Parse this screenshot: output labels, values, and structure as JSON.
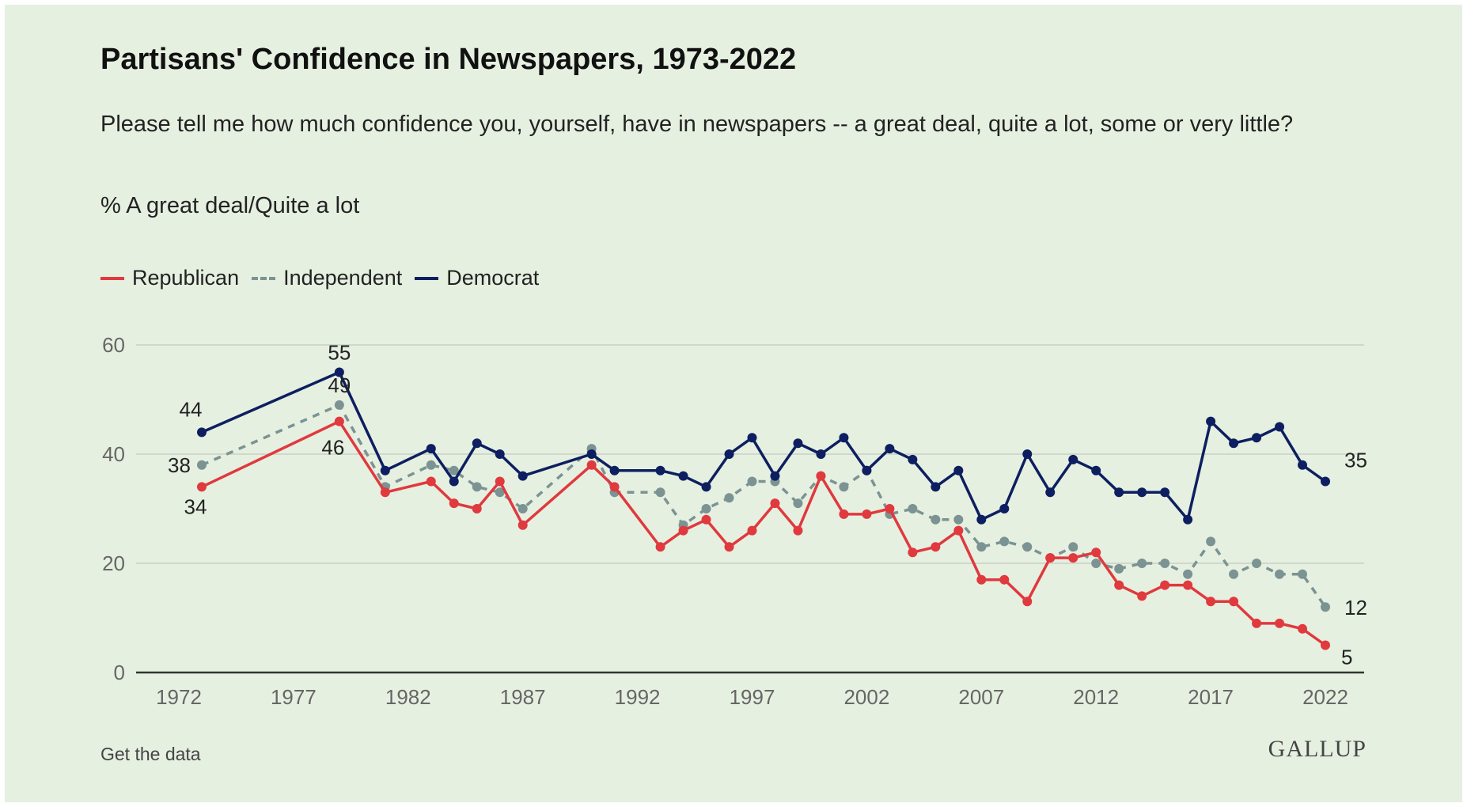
{
  "title": "Partisans' Confidence in Newspapers, 1973-2022",
  "subtitle": "Please tell me how much confidence you, yourself, have in newspapers -- a great deal, quite a lot, some or very little?",
  "measure": "% A great deal/Quite a lot",
  "footer": {
    "get_data": "Get the data",
    "logo": "GALLUP"
  },
  "chart_data": {
    "type": "line",
    "title": "Partisans' Confidence in Newspapers, 1973-2022",
    "xlabel": "",
    "ylabel": "% A great deal/Quite a lot",
    "xlim": [
      1972,
      2022
    ],
    "ylim": [
      0,
      60
    ],
    "x_ticks": [
      "1972",
      "1977",
      "1982",
      "1987",
      "1992",
      "1997",
      "2002",
      "2007",
      "2012",
      "2017",
      "2022"
    ],
    "y_ticks": [
      "0",
      "20",
      "40",
      "60"
    ],
    "legend_position": "top-left",
    "x": [
      1973,
      1979,
      1981,
      1983,
      1984,
      1985,
      1986,
      1987,
      1990,
      1991,
      1993,
      1994,
      1995,
      1996,
      1997,
      1998,
      1999,
      2000,
      2001,
      2002,
      2003,
      2004,
      2005,
      2006,
      2007,
      2008,
      2009,
      2010,
      2011,
      2012,
      2013,
      2014,
      2015,
      2016,
      2017,
      2018,
      2019,
      2020,
      2021,
      2022
    ],
    "series": [
      {
        "name": "Republican",
        "color": "#e0393e",
        "dashed": false,
        "values": [
          34,
          46,
          33,
          35,
          31,
          30,
          35,
          27,
          38,
          34,
          23,
          26,
          28,
          23,
          26,
          31,
          26,
          36,
          29,
          29,
          30,
          22,
          23,
          26,
          17,
          17,
          13,
          21,
          21,
          22,
          16,
          14,
          16,
          16,
          13,
          13,
          9,
          9,
          8,
          5
        ],
        "labels": [
          {
            "index": 0,
            "text": "34",
            "pos": "below"
          },
          {
            "index": 1,
            "text": "46",
            "pos": "below-left"
          },
          {
            "index": 39,
            "text": "5",
            "pos": "below-right"
          }
        ]
      },
      {
        "name": "Independent",
        "color": "#7b9392",
        "dashed": true,
        "values": [
          38,
          49,
          34,
          38,
          37,
          34,
          33,
          30,
          41,
          33,
          33,
          27,
          30,
          32,
          35,
          35,
          31,
          36,
          34,
          37,
          29,
          30,
          28,
          28,
          23,
          24,
          23,
          21,
          23,
          20,
          19,
          20,
          20,
          18,
          24,
          18,
          20,
          18,
          18,
          12
        ],
        "labels": [
          {
            "index": 0,
            "text": "38",
            "pos": "left"
          },
          {
            "index": 1,
            "text": "49",
            "pos": "above"
          },
          {
            "index": 39,
            "text": "12",
            "pos": "right"
          }
        ]
      },
      {
        "name": "Democrat",
        "color": "#0d1f60",
        "dashed": false,
        "values": [
          44,
          55,
          37,
          41,
          35,
          42,
          40,
          36,
          40,
          37,
          37,
          36,
          34,
          40,
          43,
          36,
          42,
          40,
          43,
          37,
          41,
          39,
          34,
          37,
          28,
          30,
          40,
          33,
          39,
          37,
          33,
          33,
          33,
          28,
          46,
          42,
          43,
          45,
          38,
          35
        ],
        "labels": [
          {
            "index": 0,
            "text": "44",
            "pos": "above-left"
          },
          {
            "index": 1,
            "text": "55",
            "pos": "above"
          },
          {
            "index": 39,
            "text": "35",
            "pos": "above-right"
          }
        ]
      }
    ]
  }
}
